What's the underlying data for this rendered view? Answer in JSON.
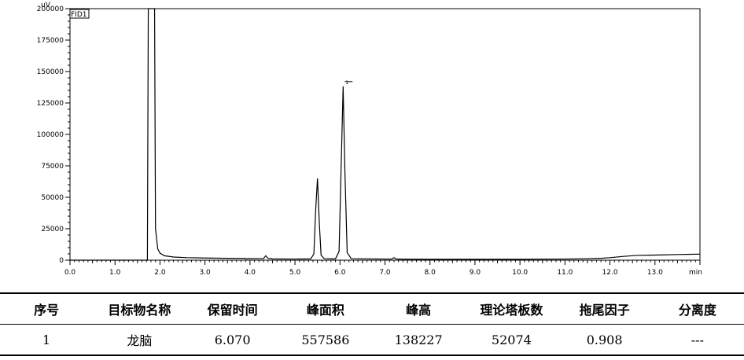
{
  "chart_data": {
    "type": "line",
    "title": "",
    "xlabel": "min",
    "ylabel": "uV",
    "legend_box": "FID1",
    "xlim": [
      0.0,
      14.0
    ],
    "ylim": [
      0,
      200000
    ],
    "x_ticks": [
      "0.0",
      "1.0",
      "2.0",
      "3.0",
      "4.0",
      "5.0",
      "6.0",
      "7.0",
      "8.0",
      "9.0",
      "10.0",
      "11.0",
      "12.0",
      "13.0"
    ],
    "y_ticks": [
      "0",
      "25000",
      "50000",
      "75000",
      "100000",
      "125000",
      "150000",
      "175000",
      "200000"
    ],
    "x_tick_values": [
      0,
      1,
      2,
      3,
      4,
      5,
      6,
      7,
      8,
      9,
      10,
      11,
      12,
      13
    ],
    "y_tick_values": [
      0,
      25000,
      50000,
      75000,
      100000,
      125000,
      150000,
      175000,
      200000
    ],
    "peak_marker": {
      "x": 6.07,
      "label": "1"
    },
    "series": [
      {
        "x": [
          0.0,
          1.0,
          1.72,
          1.74,
          1.76,
          1.79,
          1.82,
          1.85,
          1.88,
          1.9,
          1.95,
          2.0,
          2.1,
          2.3,
          2.6,
          3.0,
          3.5,
          3.9,
          3.92,
          3.95,
          4.3,
          4.35,
          4.4,
          4.5,
          5.0,
          5.35,
          5.42,
          5.46,
          5.5,
          5.54,
          5.58,
          5.65,
          5.9,
          5.98,
          6.03,
          6.07,
          6.11,
          6.16,
          6.25,
          7.0,
          7.15,
          7.2,
          7.25,
          7.4,
          8.0,
          9.0,
          10.0,
          11.0,
          11.5,
          11.8,
          12.0,
          12.3,
          12.6,
          12.9,
          13.2,
          13.5,
          13.8,
          14.0
        ],
        "y": [
          0,
          0,
          0,
          200000,
          200000,
          200000,
          200000,
          200000,
          200000,
          25000,
          9000,
          5500,
          3500,
          2500,
          2000,
          1700,
          1500,
          1400,
          900,
          1300,
          1200,
          3500,
          1500,
          1000,
          900,
          1000,
          5000,
          40000,
          65000,
          30000,
          4000,
          1200,
          1000,
          7000,
          80000,
          138227,
          70000,
          6000,
          1200,
          900,
          900,
          2000,
          900,
          800,
          700,
          700,
          700,
          900,
          1200,
          1500,
          2000,
          3000,
          3800,
          4000,
          4200,
          4500,
          4700,
          4800
        ]
      }
    ]
  },
  "table": {
    "headers": [
      "序号",
      "目标物名称",
      "保留时间",
      "峰面积",
      "峰高",
      "理论塔板数",
      "拖尾因子",
      "分离度"
    ],
    "rows": [
      [
        "1",
        "龙脑",
        "6.070",
        "557586",
        "138227",
        "52074",
        "0.908",
        "---"
      ]
    ]
  }
}
